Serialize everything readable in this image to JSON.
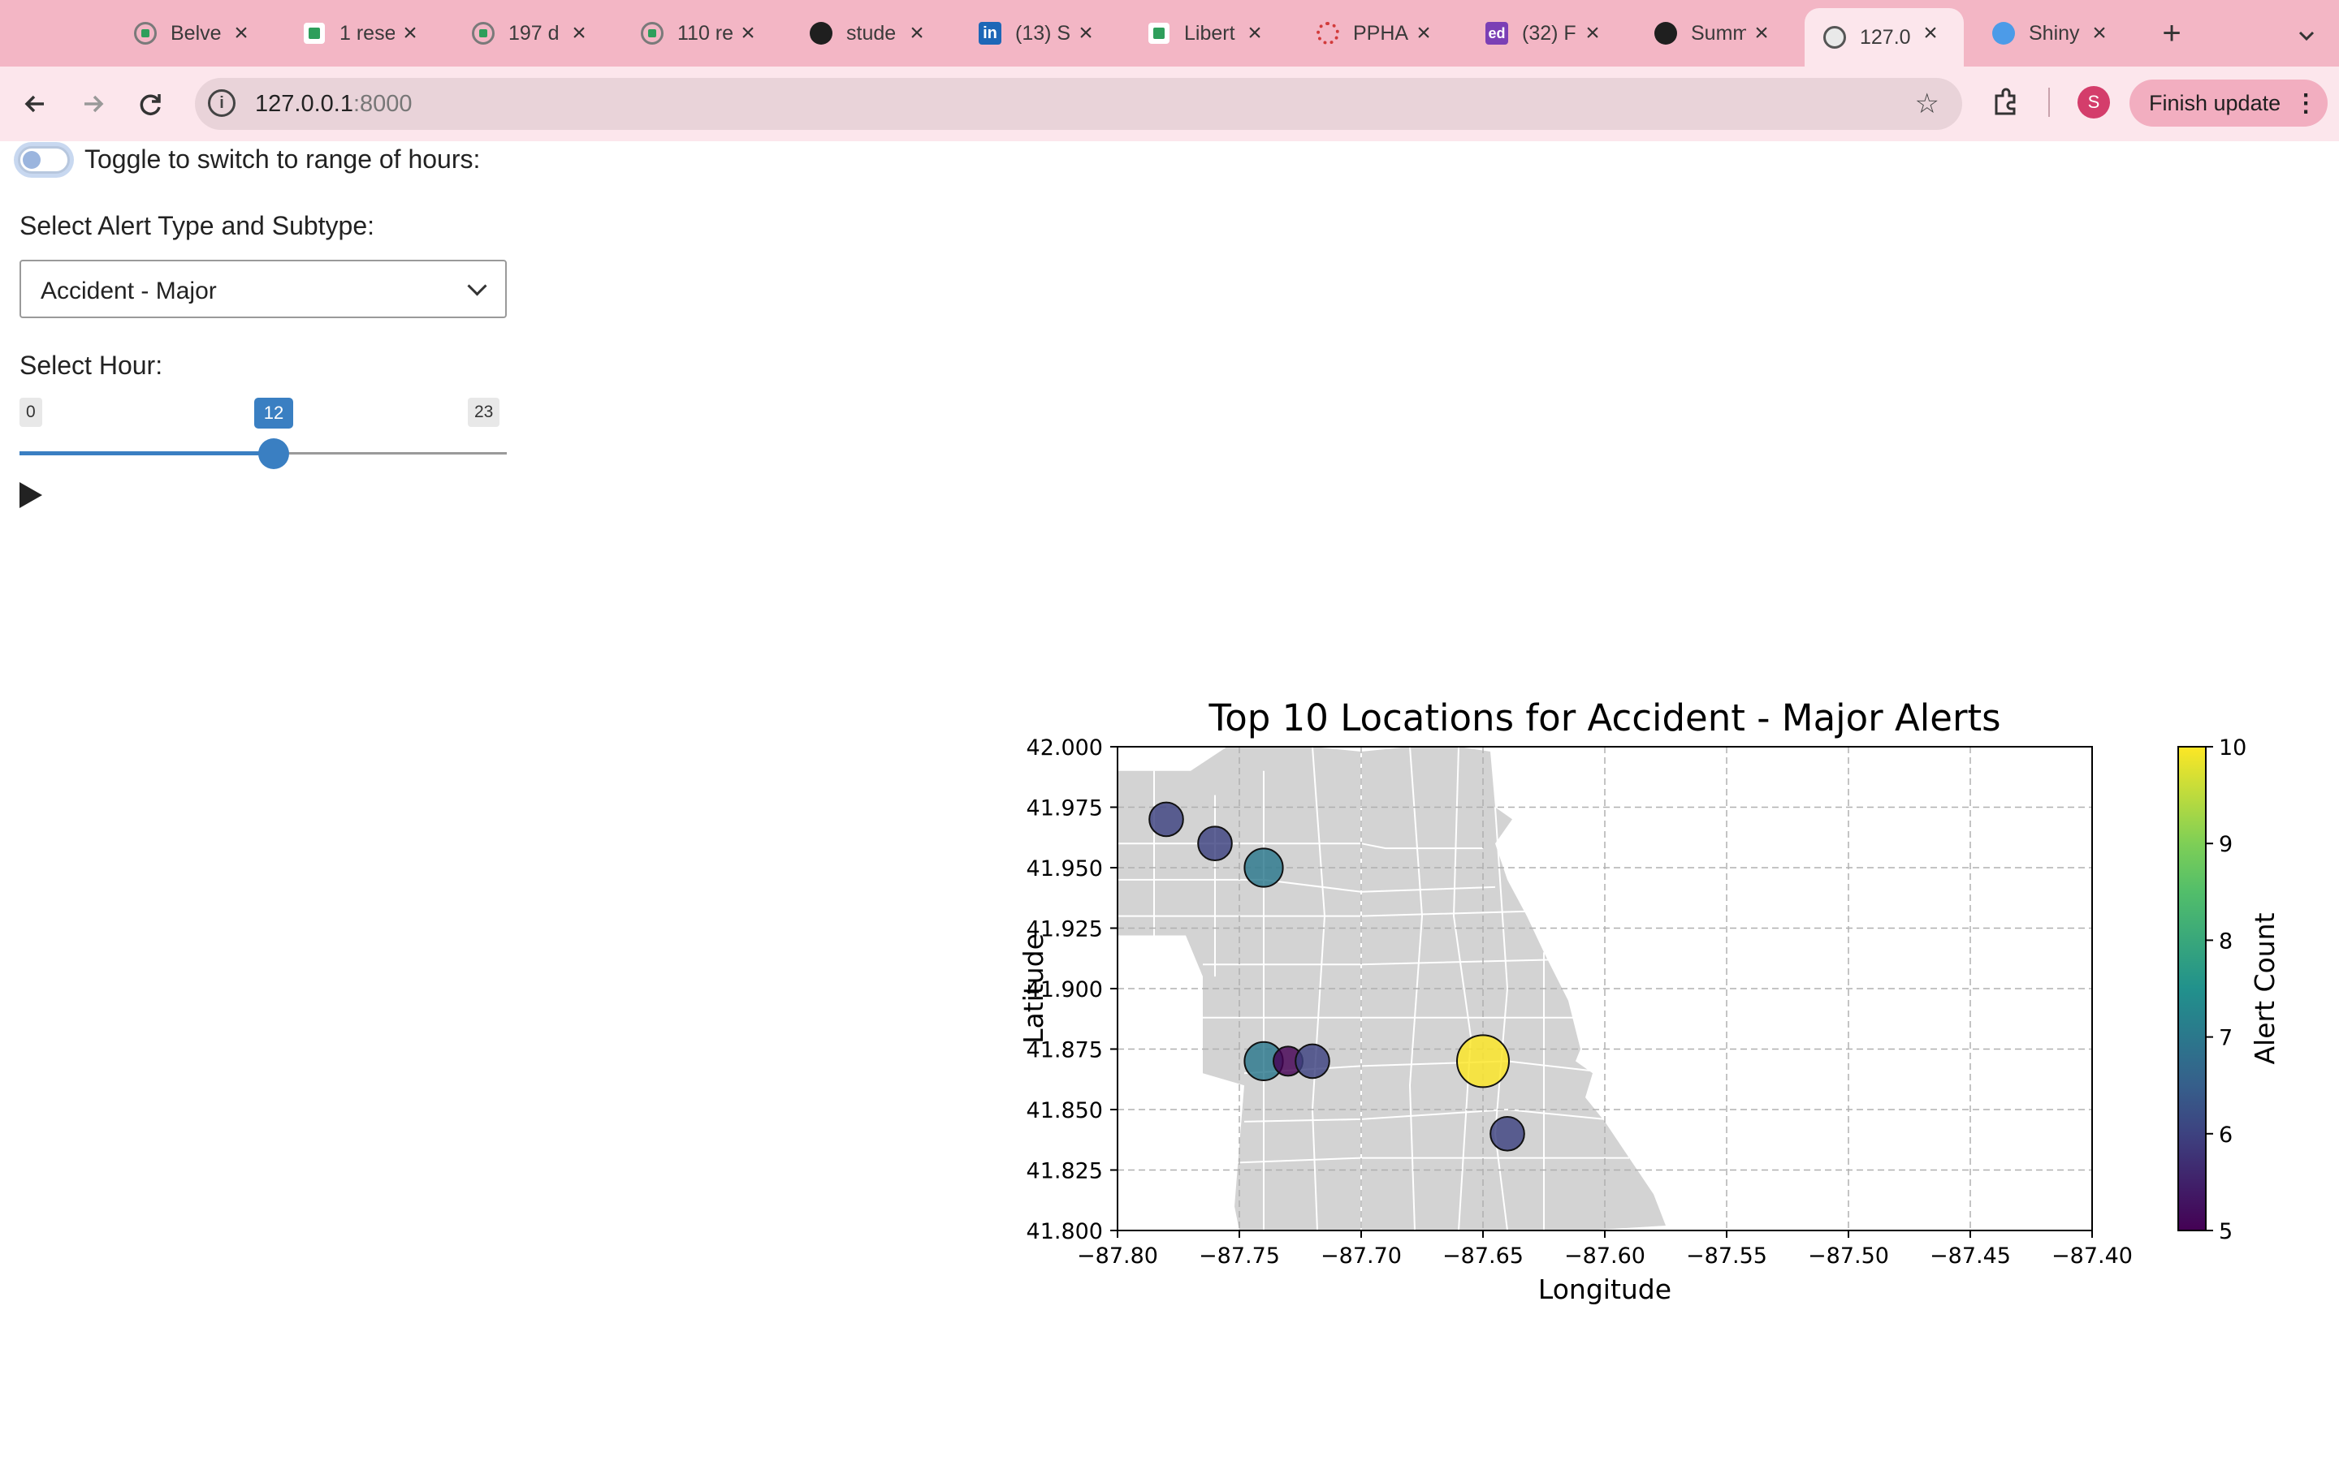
{
  "browser": {
    "tabs": [
      {
        "title": "Belve",
        "favicon": "green-circle-icon",
        "active": false
      },
      {
        "title": "1 rese",
        "favicon": "green-square-icon",
        "active": false
      },
      {
        "title": "197 d",
        "favicon": "green-circle-icon",
        "active": false
      },
      {
        "title": "110 re",
        "favicon": "green-circle-icon",
        "active": false
      },
      {
        "title": "stude",
        "favicon": "github-icon",
        "active": false
      },
      {
        "title": "(13) S",
        "favicon": "linkedin-icon",
        "active": false
      },
      {
        "title": "Libert",
        "favicon": "green-square-icon",
        "active": false
      },
      {
        "title": "PPHA",
        "favicon": "ppha-icon",
        "active": false
      },
      {
        "title": "(32) F",
        "favicon": "ed-icon",
        "active": false
      },
      {
        "title": "Summ",
        "favicon": "github-icon",
        "active": false
      },
      {
        "title": "127.0",
        "favicon": "globe-icon",
        "active": true
      },
      {
        "title": "Shiny",
        "favicon": "shiny-icon",
        "active": false
      }
    ],
    "url_host": "127.0.0.1",
    "url_port": ":8000",
    "avatar_letter": "S",
    "finish_update_label": "Finish update",
    "colors": {
      "tabstrip": "#f3b6c5",
      "toolbar": "#fce6ec",
      "accent": "#3a7fc2"
    }
  },
  "sidebar": {
    "toggle_label": "Toggle to switch to range of hours:",
    "toggle_on": false,
    "type_label": "Select Alert Type and Subtype:",
    "type_value": "Accident - Major",
    "hour_label": "Select Hour:",
    "hour_min": "0",
    "hour_max": "23",
    "hour_value": "12",
    "hour_fraction": 0.5217
  },
  "chart_data": {
    "type": "scatter",
    "title": "Top 10 Locations for Accident - Major Alerts",
    "xlabel": "Longitude",
    "ylabel": "Latitude",
    "xlim": [
      -87.8,
      -87.4
    ],
    "ylim": [
      41.8,
      42.0
    ],
    "xticks": [
      "−87.80",
      "−87.75",
      "−87.70",
      "−87.65",
      "−87.60",
      "−87.55",
      "−87.50",
      "−87.45",
      "−87.40"
    ],
    "yticks": [
      "41.800",
      "41.825",
      "41.850",
      "41.875",
      "41.900",
      "41.925",
      "41.950",
      "41.975",
      "42.000"
    ],
    "grid": true,
    "colormap": "viridis",
    "colorbar_label": "Alert Count",
    "colorbar_range": [
      5,
      10
    ],
    "colorbar_ticks": [
      "5",
      "6",
      "7",
      "8",
      "9",
      "10"
    ],
    "points": [
      {
        "lon": -87.78,
        "lat": 41.97,
        "count": 6
      },
      {
        "lon": -87.76,
        "lat": 41.96,
        "count": 6
      },
      {
        "lon": -87.74,
        "lat": 41.95,
        "count": 7
      },
      {
        "lon": -87.74,
        "lat": 41.87,
        "count": 7
      },
      {
        "lon": -87.73,
        "lat": 41.87,
        "count": 5
      },
      {
        "lon": -87.72,
        "lat": 41.87,
        "count": 6
      },
      {
        "lon": -87.65,
        "lat": 41.87,
        "count": 10
      },
      {
        "lon": -87.64,
        "lat": 41.84,
        "count": 6
      }
    ]
  }
}
